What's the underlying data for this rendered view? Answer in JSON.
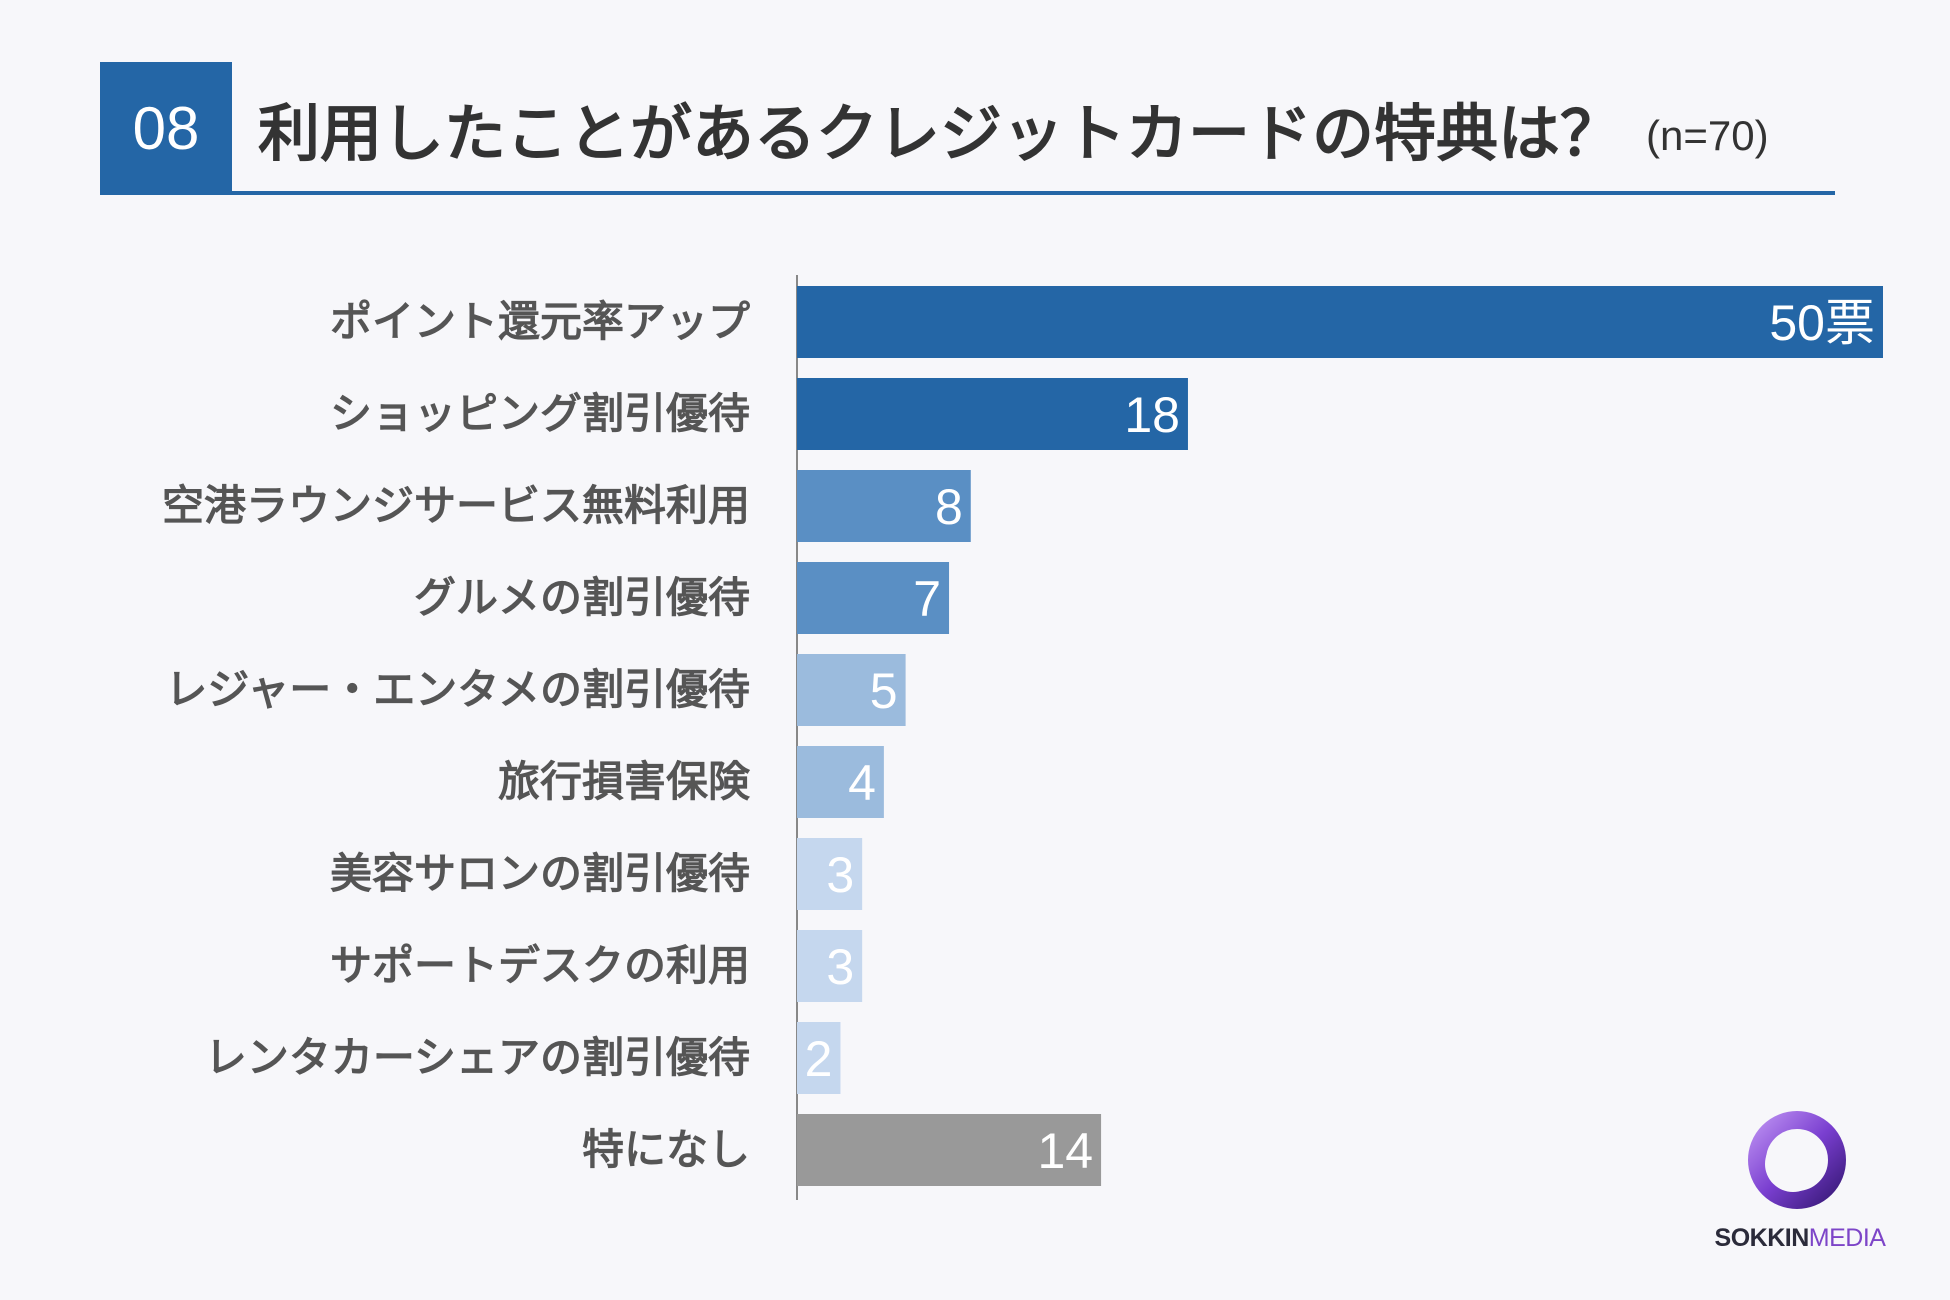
{
  "header": {
    "number": "08",
    "title": "利用したことがあるクレジットカードの特典は？",
    "sample": "(n=70)"
  },
  "colors": {
    "primary": "#2466a6",
    "medium": "#5a8fc4",
    "light": "#9bbbdd",
    "pale": "#c5d7ee",
    "none": "#999999"
  },
  "chart_data": {
    "type": "bar",
    "orientation": "horizontal",
    "title": "利用したことがあるクレジットカードの特典は？",
    "categories": [
      "ポイント還元率アップ",
      "ショッピング割引優待",
      "空港ラウンジサービス無料利用",
      "グルメの割引優待",
      "レジャー・エンタメの割引優待",
      "旅行損害保険",
      "美容サロンの割引優待",
      "サポートデスクの利用",
      "レンタカーシェアの割引優待",
      "特になし"
    ],
    "values": [
      50,
      18,
      8,
      7,
      5,
      4,
      3,
      3,
      2,
      14
    ],
    "value_labels": [
      "50票",
      "18",
      "8",
      "7",
      "5",
      "4",
      "3",
      "3",
      "2",
      "14"
    ],
    "colors": [
      "#2466a6",
      "#2466a6",
      "#5a8fc4",
      "#5a8fc4",
      "#9bbbdd",
      "#9bbbdd",
      "#c5d7ee",
      "#c5d7ee",
      "#c5d7ee",
      "#999999"
    ],
    "xlim": [
      0,
      50
    ],
    "grid": false,
    "legend": "none"
  },
  "logo": {
    "part1": "SOKKIN",
    "part2": "MEDIA"
  }
}
